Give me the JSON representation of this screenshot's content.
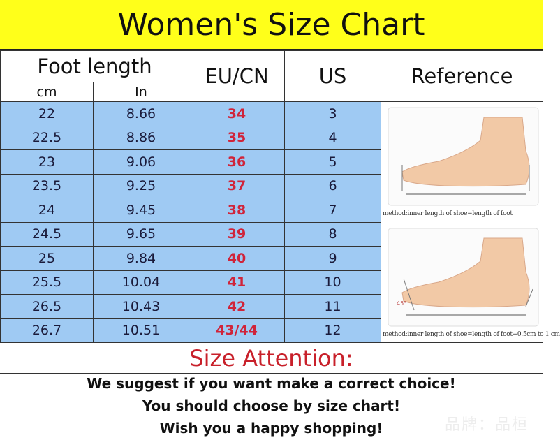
{
  "title": "Women's Size Chart",
  "headers": {
    "foot_length": "Foot length",
    "cm": "cm",
    "in": "In",
    "eu_cn": "EU/CN",
    "us": "US",
    "reference": "Reference"
  },
  "rows": [
    {
      "cm": "22",
      "in": "8.66",
      "eu": "34",
      "us": "3"
    },
    {
      "cm": "22.5",
      "in": "8.86",
      "eu": "35",
      "us": "4"
    },
    {
      "cm": "23",
      "in": "9.06",
      "eu": "36",
      "us": "5"
    },
    {
      "cm": "23.5",
      "in": "9.25",
      "eu": "37",
      "us": "6"
    },
    {
      "cm": "24",
      "in": "9.45",
      "eu": "38",
      "us": "7"
    },
    {
      "cm": "24.5",
      "in": "9.65",
      "eu": "39",
      "us": "8"
    },
    {
      "cm": "25",
      "in": "9.84",
      "eu": "40",
      "us": "9"
    },
    {
      "cm": "25.5",
      "in": "10.04",
      "eu": "41",
      "us": "10"
    },
    {
      "cm": "26.5",
      "in": "10.43",
      "eu": "42",
      "us": "11"
    },
    {
      "cm": "26.7",
      "in": "10.51",
      "eu": "43/44",
      "us": "12"
    }
  ],
  "reference": {
    "caption1": "method:inner length of shoe=length of foot",
    "caption2": "method:inner length of shoe=length of foot+0.5cm to 1 cm",
    "angle_label": "45°"
  },
  "attention": {
    "title": "Size Attention:",
    "lines": [
      "We suggest if you want make a correct choice!",
      "You should choose by size chart!",
      "Wish you a happy shopping!"
    ]
  },
  "watermark": "品牌：品桓",
  "colors": {
    "banner": "#ffff1a",
    "row_bg": "#9fcaf3",
    "eu_text": "#d0243a",
    "attention": "#c8202a"
  }
}
